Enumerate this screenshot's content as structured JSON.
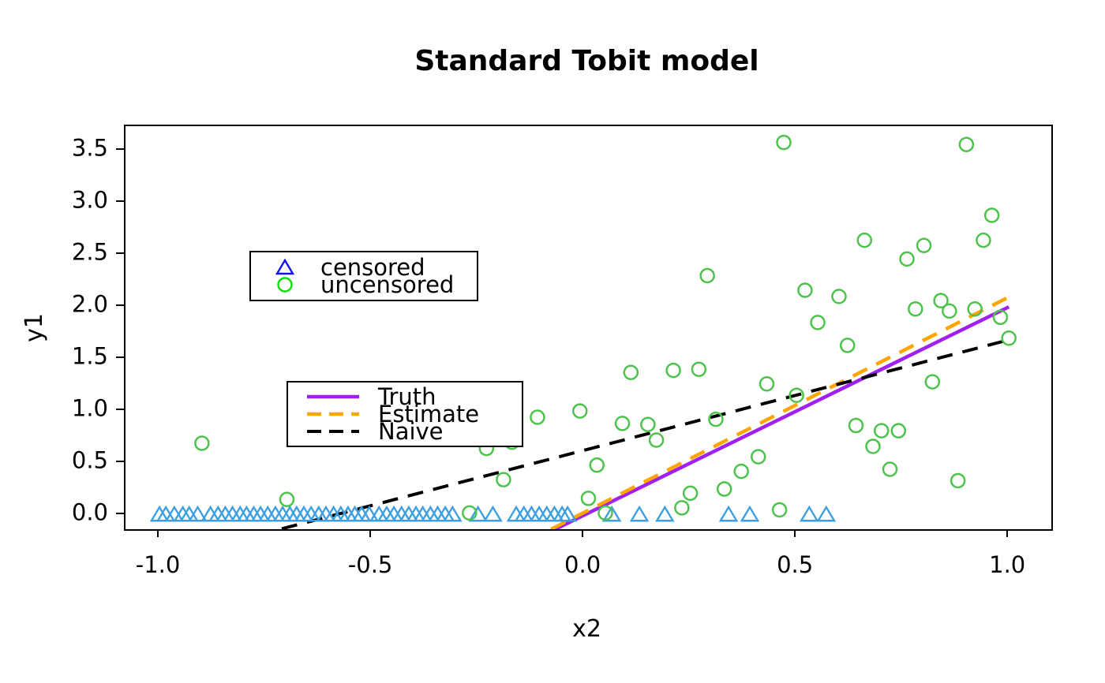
{
  "title": "Standard Tobit model",
  "axes": {
    "x_label": "x2",
    "y_label": "y1",
    "x_ticks": [
      -1.0,
      -0.5,
      0.0,
      0.5,
      1.0
    ],
    "y_ticks": [
      0.0,
      0.5,
      1.0,
      1.5,
      2.0,
      2.5,
      3.0,
      3.5
    ],
    "xlim": [
      -1.08,
      1.1
    ],
    "ylim": [
      -0.136,
      3.736
    ]
  },
  "legend_points": {
    "items": [
      {
        "label": "censored",
        "marker": "triangle-open",
        "color": "#1414F0"
      },
      {
        "label": "uncensored",
        "marker": "circle-open",
        "color": "#0ADF0A"
      }
    ]
  },
  "legend_lines": {
    "items": [
      {
        "label": "Truth",
        "color": "#A020F0",
        "dashed": false
      },
      {
        "label": "Estimate",
        "color": "#FFA500",
        "dashed": true
      },
      {
        "label": "Naive",
        "color": "#000000",
        "dashed": true
      }
    ]
  },
  "chart_data": {
    "type": "scatter",
    "title": "Standard Tobit model",
    "xlabel": "x2",
    "ylabel": "y1",
    "xlim": [
      -1.08,
      1.1
    ],
    "ylim": [
      -0.136,
      3.736
    ],
    "grid": false,
    "legend_position": "top-left",
    "series": [
      {
        "name": "censored",
        "marker": "triangle-open",
        "color": "#3D9FE0",
        "points_x": [
          -1.0,
          -0.985,
          -0.965,
          -0.945,
          -0.93,
          -0.91,
          -0.88,
          -0.862,
          -0.845,
          -0.828,
          -0.81,
          -0.795,
          -0.778,
          -0.762,
          -0.745,
          -0.727,
          -0.71,
          -0.693,
          -0.677,
          -0.66,
          -0.643,
          -0.625,
          -0.608,
          -0.59,
          -0.573,
          -0.556,
          -0.54,
          -0.524,
          -0.506,
          -0.483,
          -0.465,
          -0.448,
          -0.43,
          -0.413,
          -0.396,
          -0.38,
          -0.362,
          -0.345,
          -0.327,
          -0.31,
          -0.25,
          -0.215,
          -0.16,
          -0.142,
          -0.124,
          -0.106,
          -0.088,
          -0.07,
          -0.052,
          -0.039,
          0.065,
          0.13,
          0.19,
          0.34,
          0.39,
          0.53,
          0.57
        ],
        "points_y_value": 0.0
      },
      {
        "name": "uncensored",
        "marker": "circle-open",
        "color": "#4DC24D",
        "points": [
          [
            -0.9,
            0.69
          ],
          [
            -0.7,
            0.15
          ],
          [
            -0.5,
            0.82
          ],
          [
            -0.27,
            0.02
          ],
          [
            -0.23,
            0.64
          ],
          [
            -0.19,
            0.34
          ],
          [
            -0.17,
            0.7
          ],
          [
            -0.11,
            0.94
          ],
          [
            -0.01,
            1.0
          ],
          [
            0.01,
            0.16
          ],
          [
            0.03,
            0.48
          ],
          [
            0.05,
            0.02
          ],
          [
            0.09,
            0.88
          ],
          [
            0.11,
            1.37
          ],
          [
            0.15,
            0.87
          ],
          [
            0.17,
            0.72
          ],
          [
            0.21,
            1.39
          ],
          [
            0.23,
            0.07
          ],
          [
            0.25,
            0.21
          ],
          [
            0.27,
            1.4
          ],
          [
            0.29,
            2.3
          ],
          [
            0.31,
            0.92
          ],
          [
            0.33,
            0.25
          ],
          [
            0.37,
            0.42
          ],
          [
            0.41,
            0.56
          ],
          [
            0.43,
            1.26
          ],
          [
            0.46,
            0.05
          ],
          [
            0.47,
            3.58
          ],
          [
            0.5,
            1.15
          ],
          [
            0.52,
            2.16
          ],
          [
            0.55,
            1.85
          ],
          [
            0.6,
            2.1
          ],
          [
            0.62,
            1.63
          ],
          [
            0.64,
            0.86
          ],
          [
            0.66,
            2.64
          ],
          [
            0.68,
            0.66
          ],
          [
            0.7,
            0.81
          ],
          [
            0.72,
            0.44
          ],
          [
            0.74,
            0.81
          ],
          [
            0.76,
            2.46
          ],
          [
            0.78,
            1.98
          ],
          [
            0.8,
            2.59
          ],
          [
            0.82,
            1.28
          ],
          [
            0.84,
            2.06
          ],
          [
            0.86,
            1.96
          ],
          [
            0.88,
            0.33
          ],
          [
            0.9,
            3.56
          ],
          [
            0.92,
            1.98
          ],
          [
            0.94,
            2.64
          ],
          [
            0.96,
            2.88
          ],
          [
            0.98,
            1.9
          ],
          [
            1.0,
            1.7
          ]
        ]
      }
    ],
    "lines": [
      {
        "name": "Truth",
        "color": "#A020F0",
        "dashed": false,
        "width": 4.5,
        "from": [
          -0.068,
          -0.136
        ],
        "to": [
          1.0,
          2.0
        ]
      },
      {
        "name": "Estimate",
        "color": "#FFA500",
        "dashed": true,
        "width": 4.5,
        "from": [
          -0.078,
          -0.136
        ],
        "to": [
          1.005,
          2.105
        ]
      },
      {
        "name": "Naive",
        "color": "#000000",
        "dashed": true,
        "width": 4.0,
        "from": [
          -0.712,
          -0.132
        ],
        "to": [
          1.007,
          1.69
        ]
      }
    ]
  }
}
